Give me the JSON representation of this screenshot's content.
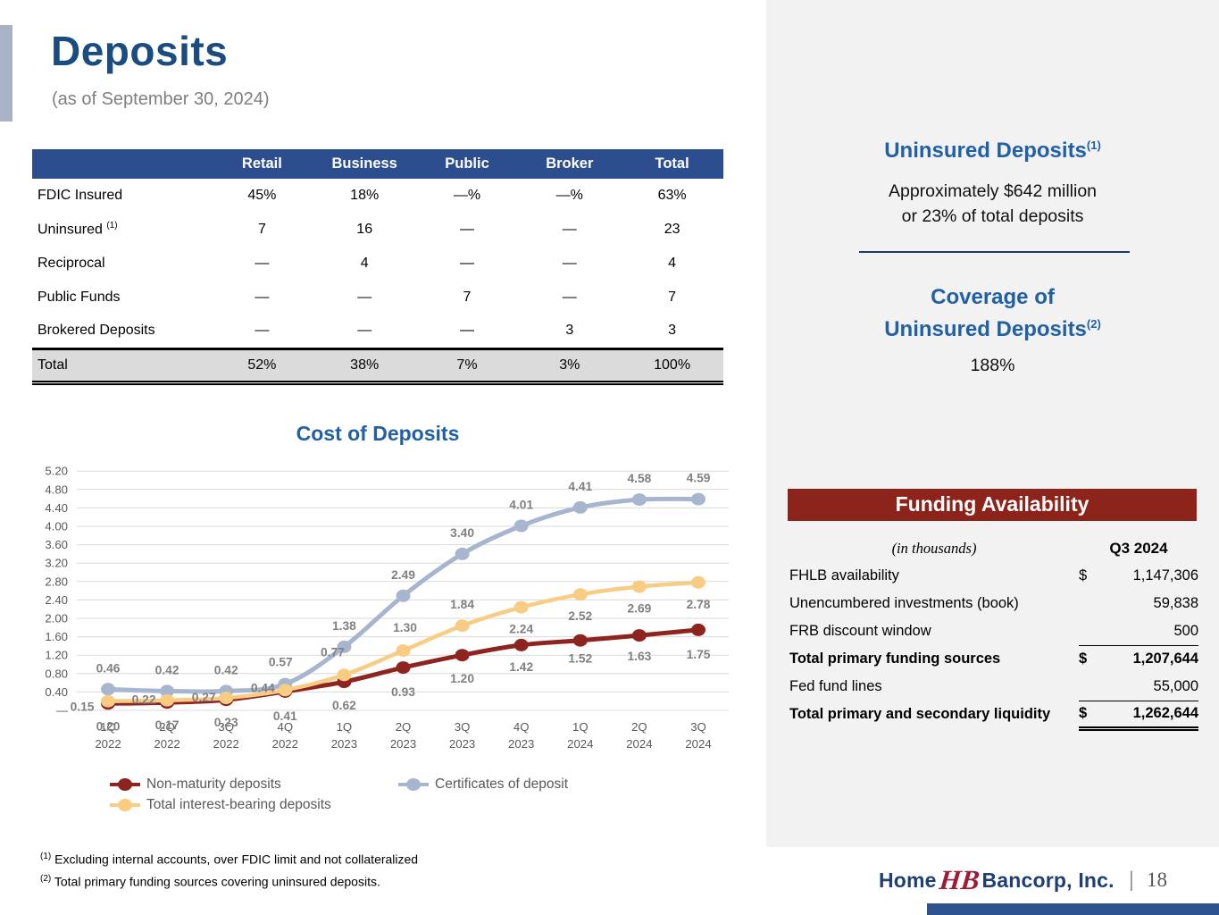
{
  "slide": {
    "title": "Deposits",
    "subtitle": "(as of September 30, 2024)",
    "page_number": "18"
  },
  "deposit_mix_table": {
    "columns": [
      "Retail",
      "Business",
      "Public",
      "Broker",
      "Total"
    ],
    "rows": [
      {
        "label": "FDIC Insured",
        "sup": "",
        "values": [
          "45%",
          "18%",
          "—%",
          "—%",
          "63%"
        ]
      },
      {
        "label": "Uninsured ",
        "sup": "(1)",
        "values": [
          "7",
          "16",
          "—",
          "—",
          "23"
        ]
      },
      {
        "label": "Reciprocal",
        "sup": "",
        "values": [
          "—",
          "4",
          "—",
          "—",
          "4"
        ]
      },
      {
        "label": "Public Funds",
        "sup": "",
        "values": [
          "—",
          "—",
          "7",
          "—",
          "7"
        ]
      },
      {
        "label": "Brokered Deposits",
        "sup": "",
        "values": [
          "—",
          "—",
          "—",
          "3",
          "3"
        ]
      }
    ],
    "total_row": {
      "label": "Total",
      "values": [
        "52%",
        "38%",
        "7%",
        "3%",
        "100%"
      ]
    }
  },
  "chart_data": {
    "type": "line",
    "title": "Cost of Deposits",
    "categories": [
      "1Q 2022",
      "2Q 2022",
      "3Q 2022",
      "4Q 2022",
      "1Q 2023",
      "2Q 2023",
      "3Q 2023",
      "4Q 2023",
      "1Q 2024",
      "2Q 2024",
      "3Q 2024"
    ],
    "series": [
      {
        "name": "Non-maturity deposits",
        "color": "#8E2420",
        "values": [
          0.15,
          0.17,
          0.23,
          0.41,
          0.62,
          0.93,
          1.2,
          1.42,
          1.52,
          1.63,
          1.75
        ]
      },
      {
        "name": "Total interest-bearing deposits",
        "color": "#F9CC84",
        "values": [
          0.2,
          0.22,
          0.27,
          0.44,
          0.77,
          1.3,
          1.84,
          2.24,
          2.52,
          2.69,
          2.78
        ]
      },
      {
        "name": "Certificates of deposit",
        "color": "#A8B5CE",
        "values": [
          0.46,
          0.42,
          0.42,
          0.57,
          1.38,
          2.49,
          3.4,
          4.01,
          4.41,
          4.58,
          4.59
        ]
      }
    ],
    "ylim": [
      0,
      5.2
    ],
    "ytick_step": 0.4,
    "ytick_labels": [
      "—",
      "0.40",
      "0.80",
      "1.20",
      "1.60",
      "2.00",
      "2.40",
      "2.80",
      "3.20",
      "3.60",
      "4.00",
      "4.40",
      "4.80",
      "5.20"
    ],
    "grid": true,
    "legend_position": "bottom"
  },
  "right_panel": {
    "uninsured": {
      "heading": "Uninsured Deposits",
      "heading_sup": "(1)",
      "body_line1": "Approximately $642 million",
      "body_line2": "or 23% of total deposits"
    },
    "coverage": {
      "heading_line1": "Coverage of",
      "heading_line2": "Uninsured Deposits",
      "heading_sup": "(2)",
      "value": "188%"
    },
    "funding": {
      "header": "Funding Availability",
      "units_label": "(in thousands)",
      "column_header": "Q3 2024",
      "rows": [
        {
          "label": "FHLB availability",
          "dollar": "$",
          "value": "1,147,306",
          "bold": false,
          "rule": ""
        },
        {
          "label": "Unencumbered investments (book)",
          "dollar": "",
          "value": "59,838",
          "bold": false,
          "rule": ""
        },
        {
          "label": "FRB discount window",
          "dollar": "",
          "value": "500",
          "bold": false,
          "rule": "single"
        },
        {
          "label": "Total primary funding sources",
          "dollar": "$",
          "value": "1,207,644",
          "bold": true,
          "rule": ""
        },
        {
          "label": "Fed fund lines",
          "dollar": "",
          "value": "55,000",
          "bold": false,
          "rule": "single"
        },
        {
          "label": "Total primary and secondary liquidity",
          "dollar": "$",
          "value": "1,262,644",
          "bold": true,
          "rule": "double"
        }
      ]
    }
  },
  "footnotes": [
    {
      "sup": "(1)",
      "text": " Excluding internal accounts, over FDIC limit and not collateralized"
    },
    {
      "sup": "(2)",
      "text": " Total primary funding sources covering uninsured deposits."
    }
  ],
  "logo": {
    "home": "Home",
    "monogram": "HB",
    "bancorp": "Bancorp, Inc.",
    "separator": "|"
  },
  "colors": {
    "title_blue": "#1B4C80",
    "heading_blue": "#2160A5",
    "tbl_header": "#2D4E8E",
    "maroon": "#8C241B",
    "panel_bg": "#F2F2F2",
    "footer_blue": "#2C538E",
    "accent_bar": "#A9B2C4",
    "total_bg": "#DBDBDB",
    "grid_gray": "#D9D9D9",
    "axis_gray": "#595959",
    "dlabel_gray": "#808080",
    "legend_text": "#595959",
    "divider_navy": "#1F3864",
    "subtitle_gray": "#7F7F7F",
    "logo_navy": "#1E3F72",
    "logo_red": "#9E1B38"
  }
}
